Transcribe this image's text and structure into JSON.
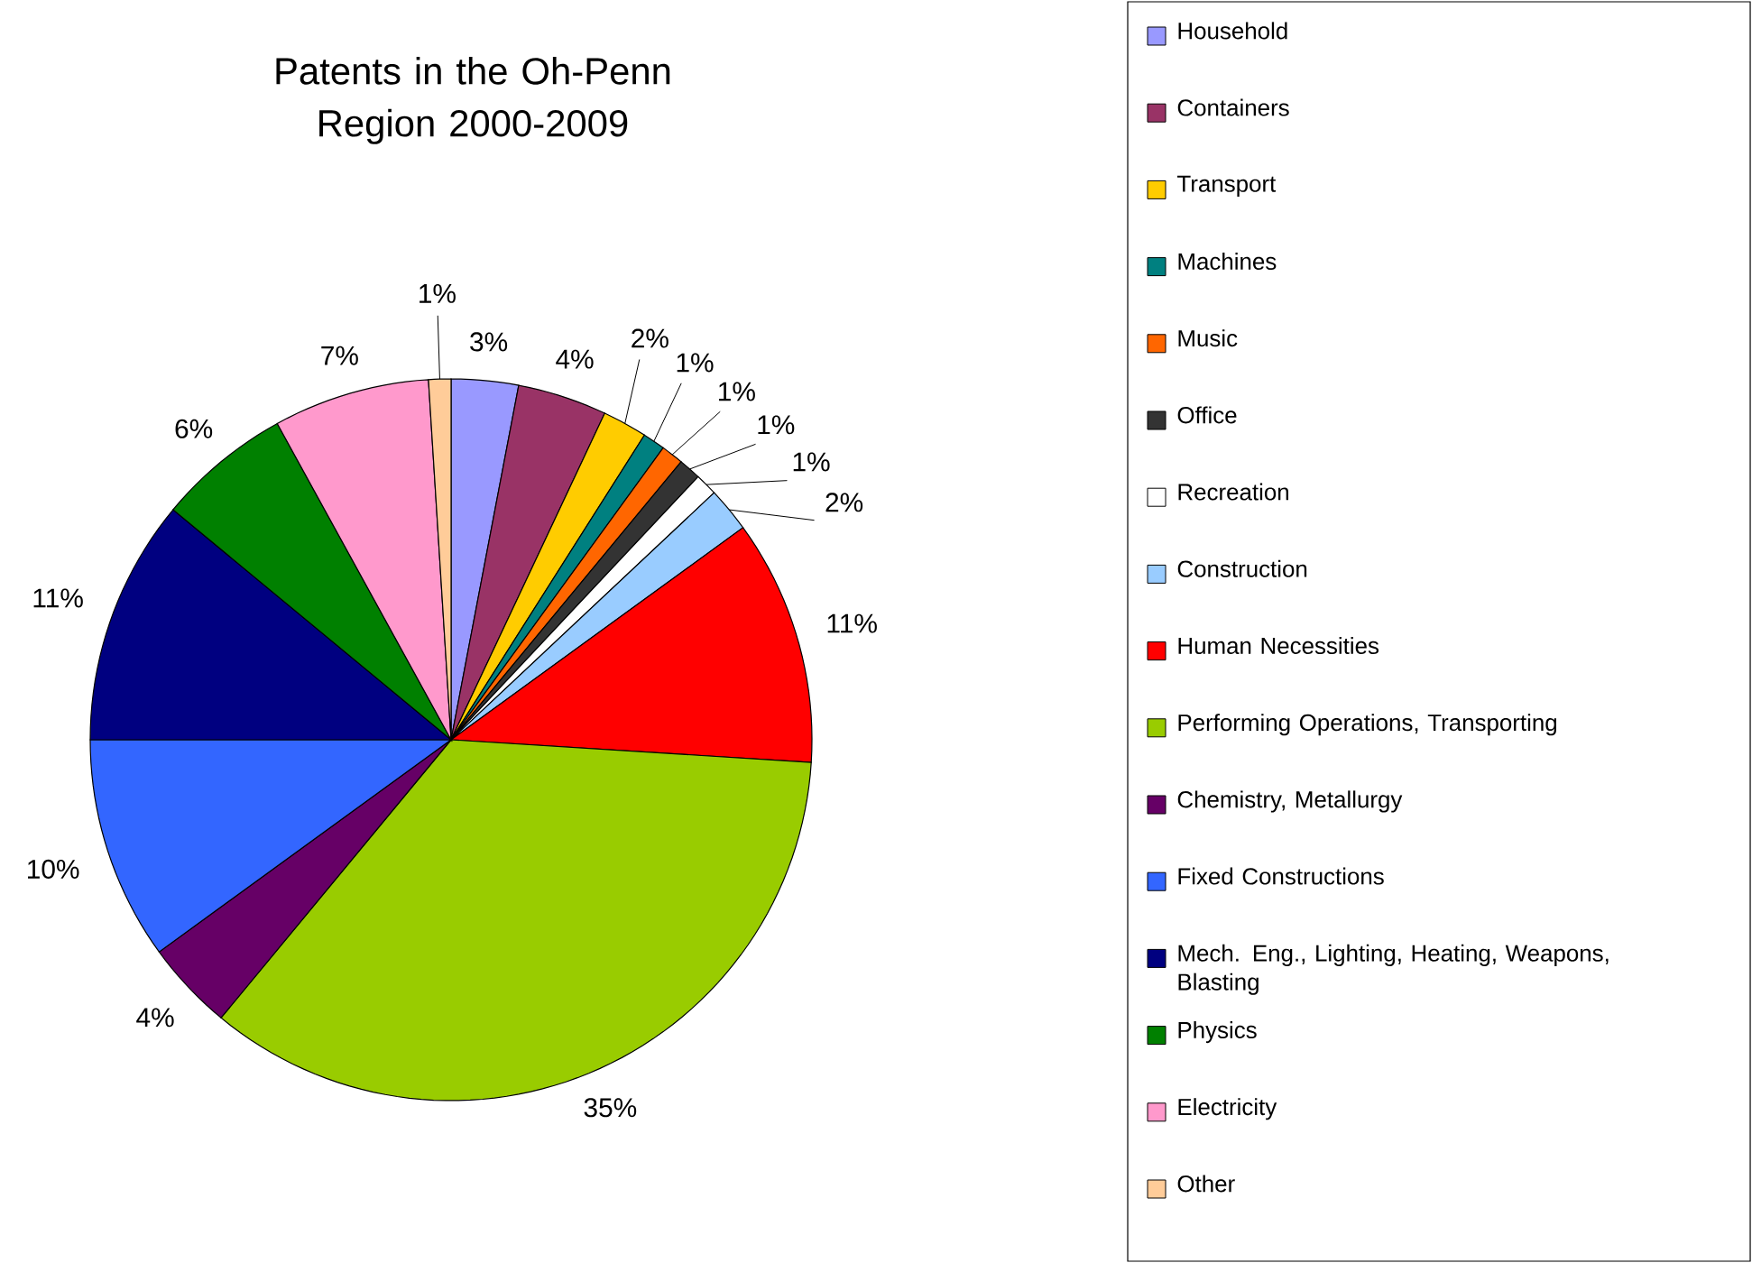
{
  "chart_data": {
    "type": "pie",
    "title": "Patents in the Oh-Penn Region 2000-2009",
    "categories": [
      "Household",
      "Containers",
      "Transport",
      "Machines",
      "Music",
      "Office",
      "Recreation",
      "Construction",
      "Human Necessities",
      "Performing Operations, Transporting",
      "Chemistry, Metallurgy",
      "Fixed Constructions",
      "Mech. Eng., Lighting, Heating, Weapons, Blasting",
      "Physics",
      "Electricity",
      "Other"
    ],
    "values": [
      3,
      4,
      2,
      1,
      1,
      1,
      1,
      2,
      11,
      35,
      4,
      10,
      11,
      6,
      7,
      1
    ],
    "value_labels": [
      "3%",
      "4%",
      "2%",
      "1%",
      "1%",
      "1%",
      "1%",
      "2%",
      "11%",
      "35%",
      "4%",
      "10%",
      "11%",
      "6%",
      "7%",
      "1%"
    ],
    "colors": [
      "#9999ff",
      "#993366",
      "#ffcc00",
      "#008080",
      "#ff6600",
      "#333333",
      "#ffffff",
      "#99ccff",
      "#ff0000",
      "#99cc00",
      "#660066",
      "#3366ff",
      "#000080",
      "#008000",
      "#ff99cc",
      "#ffcc99"
    ],
    "legend": "right"
  }
}
